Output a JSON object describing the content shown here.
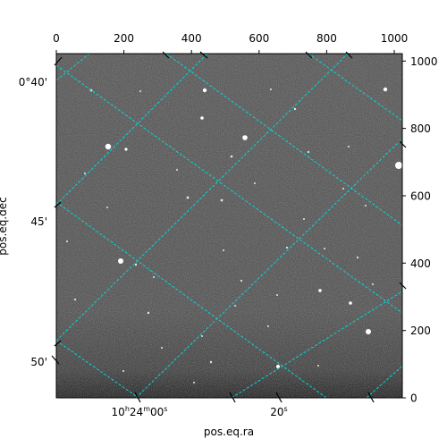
{
  "figure": {
    "xlabel": "pos.eq.ra",
    "ylabel": "pos.eq.dec",
    "pixel_axis_top_ticks": [
      "0",
      "200",
      "400",
      "600",
      "800",
      "1000"
    ],
    "pixel_axis_right_ticks": [
      "0",
      "200",
      "400",
      "600",
      "800",
      "1000"
    ],
    "ra_ticks": [
      {
        "text": "10ʰ24ᵐ00ˢ",
        "main": "10",
        "h": "h",
        "m_val": "24",
        "m": "m",
        "s_val": "00",
        "s": "s"
      },
      {
        "text": "20ˢ",
        "main": "20",
        "s": "s"
      }
    ],
    "dec_ticks": [
      "0°40'",
      "45'",
      "50'"
    ],
    "grid_color": "#00d8d8",
    "image_style": "grayscale star field"
  }
}
